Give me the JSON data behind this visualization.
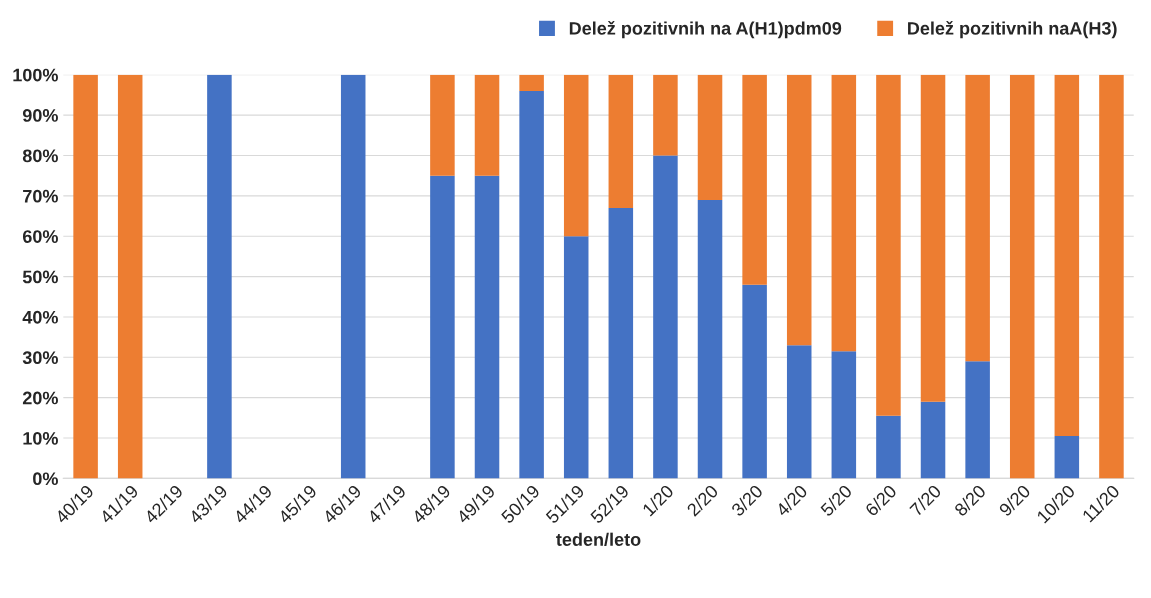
{
  "chart_data": {
    "type": "bar",
    "stacked": true,
    "xlabel": "teden/leto",
    "categories": [
      "40/19",
      "41/19",
      "42/19",
      "43/19",
      "44/19",
      "45/19",
      "46/19",
      "47/19",
      "48/19",
      "49/19",
      "50/19",
      "51/19",
      "52/19",
      "1/20",
      "2/20",
      "3/20",
      "4/20",
      "5/20",
      "6/20",
      "7/20",
      "8/20",
      "9/20",
      "10/20",
      "11/20"
    ],
    "series": [
      {
        "name": "Delež pozitivnih na A(H1)pdm09",
        "color": "#4472c4",
        "values": [
          0,
          0,
          null,
          100,
          null,
          null,
          100,
          null,
          75,
          75,
          96,
          60,
          67,
          80,
          69,
          48,
          33,
          31.5,
          15.5,
          19,
          29,
          0,
          10.5,
          0
        ]
      },
      {
        "name": "Delež pozitivnih naA(H3)",
        "color": "#ed7d31",
        "values": [
          100,
          100,
          null,
          0,
          null,
          null,
          0,
          null,
          25,
          25,
          4,
          40,
          33,
          20,
          31,
          52,
          67,
          68.5,
          84.5,
          81,
          71,
          100,
          89.5,
          100
        ]
      }
    ],
    "ylim": [
      0,
      100
    ],
    "yticks": [
      {
        "value": 0,
        "label": "0%"
      },
      {
        "value": 10,
        "label": "10%"
      },
      {
        "value": 20,
        "label": "20%"
      },
      {
        "value": 30,
        "label": "30%"
      },
      {
        "value": 40,
        "label": "40%"
      },
      {
        "value": 50,
        "label": "50%"
      },
      {
        "value": 60,
        "label": "60%"
      },
      {
        "value": 70,
        "label": "70%"
      },
      {
        "value": 80,
        "label": "80%"
      },
      {
        "value": 90,
        "label": "90%"
      },
      {
        "value": 100,
        "label": "100%"
      }
    ],
    "grid": "y",
    "legend": "top right"
  }
}
